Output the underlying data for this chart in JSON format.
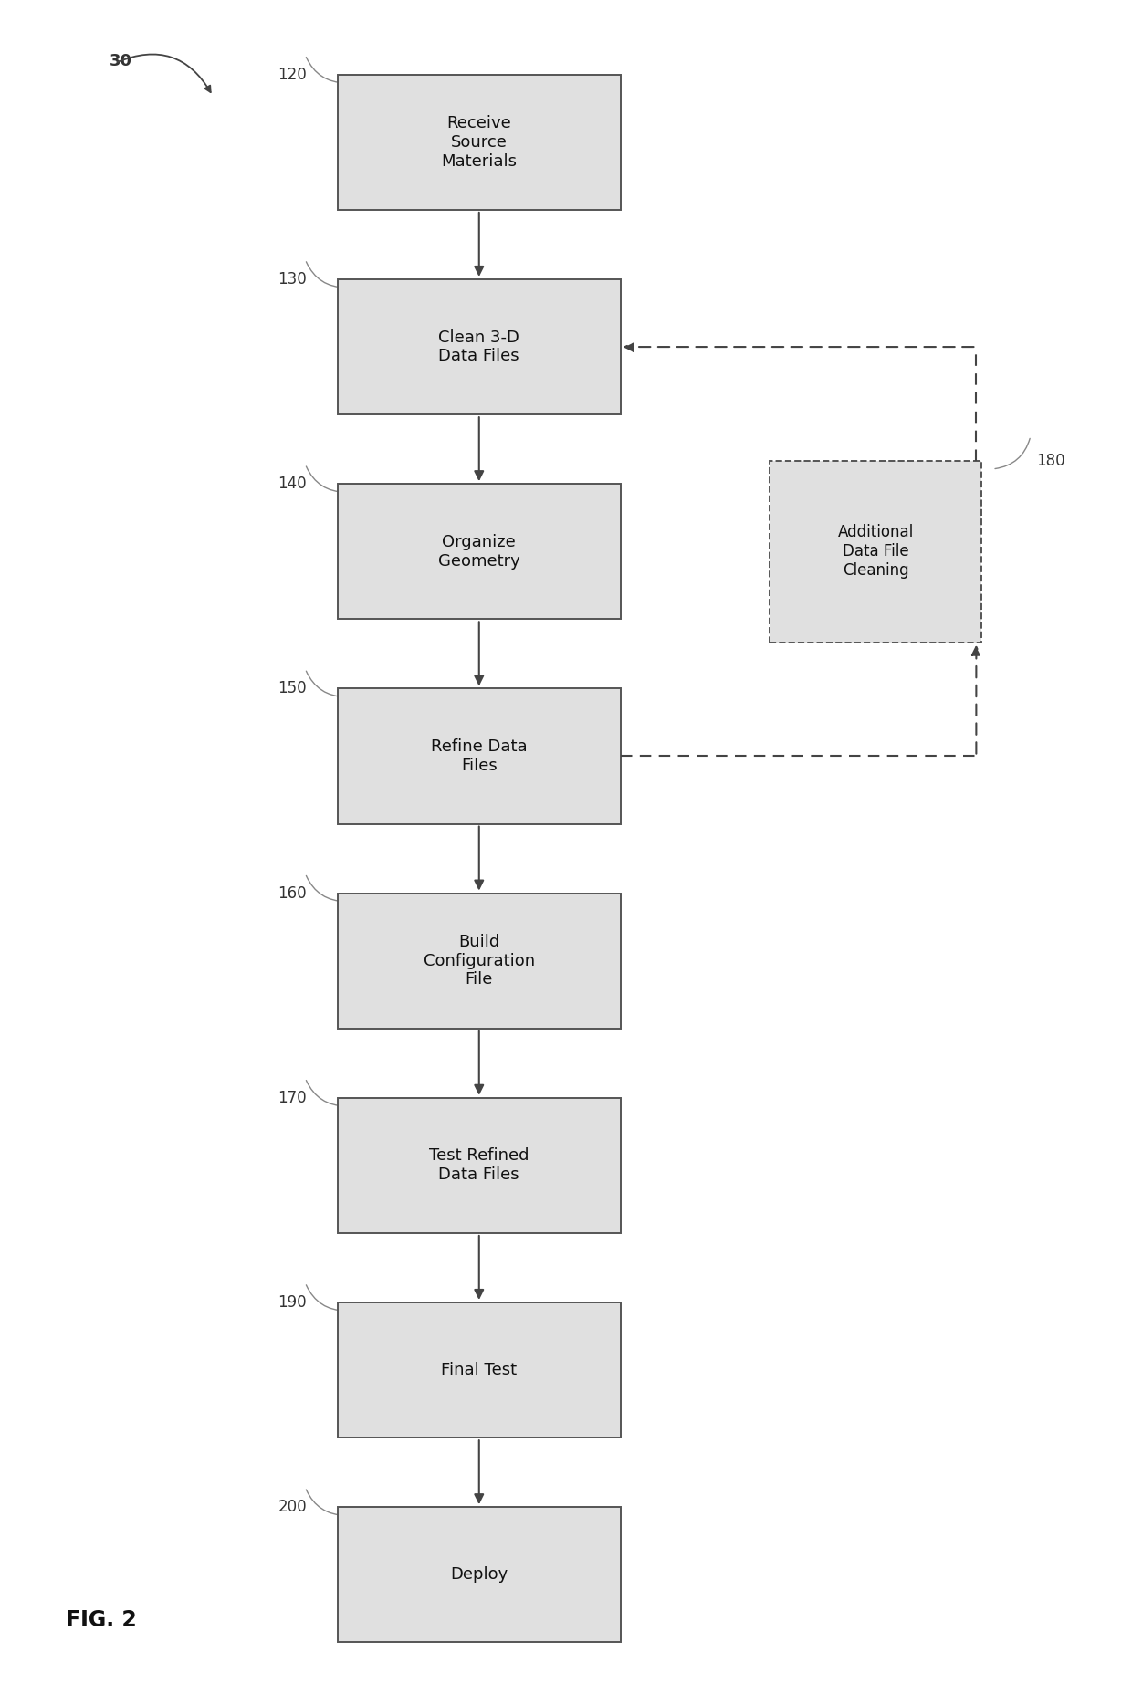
{
  "figure_width": 12.4,
  "figure_height": 18.45,
  "bg_color": "#ffffff",
  "box_fill": "#e0e0e0",
  "box_edge": "#555555",
  "dashed_box_fill": "#e0e0e0",
  "dashed_box_edge": "#555555",
  "arrow_color": "#444444",
  "text_color": "#111111",
  "label_color": "#333333",
  "main_boxes": [
    {
      "label": "120",
      "text": "Receive\nSource\nMaterials"
    },
    {
      "label": "130",
      "text": "Clean 3-D\nData Files"
    },
    {
      "label": "140",
      "text": "Organize\nGeometry"
    },
    {
      "label": "150",
      "text": "Refine Data\nFiles"
    },
    {
      "label": "160",
      "text": "Build\nConfiguration\nFile"
    },
    {
      "label": "170",
      "text": "Test Refined\nData Files"
    },
    {
      "label": "190",
      "text": "Final Test"
    },
    {
      "label": "200",
      "text": "Deploy"
    }
  ],
  "side_box": {
    "label": "180",
    "text": "Additional\nData File\nCleaning"
  },
  "fig2_label": "FIG. 2",
  "ref_30_label": "30"
}
